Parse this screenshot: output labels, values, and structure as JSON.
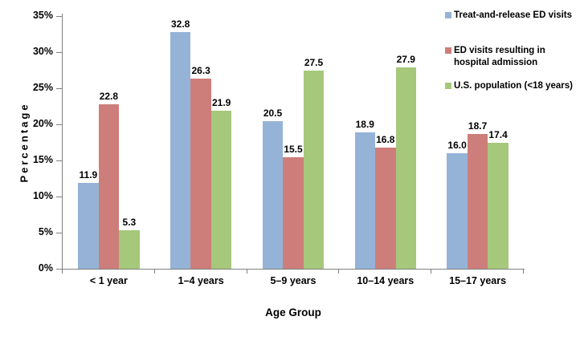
{
  "chart_data": {
    "type": "bar",
    "title": "",
    "xlabel": "Age Group",
    "ylabel": "Percentage",
    "categories": [
      "< 1 year",
      "1–4 years",
      "5–9 years",
      "10–14 years",
      "15–17 years"
    ],
    "series": [
      {
        "name": "Treat-and-release ED visits",
        "color": "#95B3D7",
        "values": [
          11.9,
          32.8,
          20.5,
          18.9,
          16.0
        ]
      },
      {
        "name": "ED visits resulting in\nhospital admission",
        "color": "#CD7E7B",
        "values": [
          22.8,
          26.3,
          15.5,
          16.8,
          18.7
        ]
      },
      {
        "name": "U.S. population (<18 years)",
        "color": "#A6C87A",
        "values": [
          5.3,
          21.9,
          27.5,
          27.9,
          17.4
        ]
      }
    ],
    "ylim": [
      0,
      35
    ],
    "ytick_step": 5,
    "ytick_labels": [
      "0%",
      "5%",
      "10%",
      "15%",
      "20%",
      "25%",
      "30%",
      "35%"
    ],
    "grid": false,
    "legend_position": "top-right",
    "axis_color": "#808080",
    "text_color": "#000000",
    "background_color": "#FFFFFF"
  }
}
